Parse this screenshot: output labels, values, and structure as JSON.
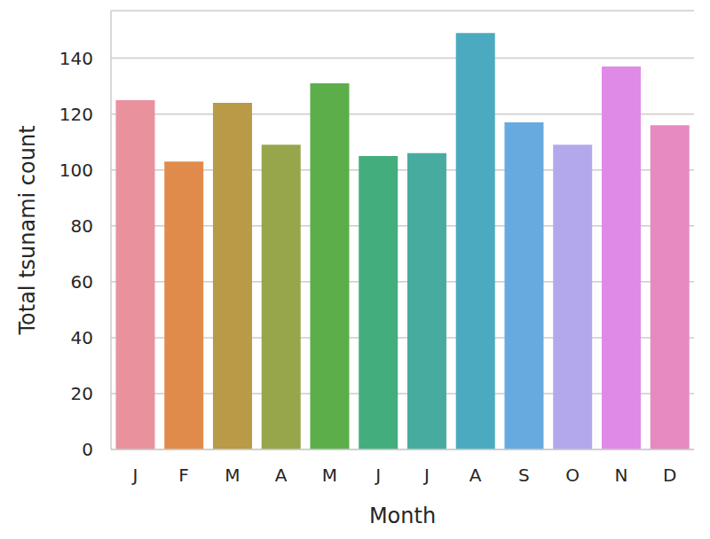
{
  "chart_data": {
    "type": "bar",
    "xlabel": "Month",
    "ylabel": "Total tsunami count",
    "categories": [
      "J",
      "F",
      "M",
      "A",
      "M",
      "J",
      "J",
      "A",
      "S",
      "O",
      "N",
      "D"
    ],
    "values": [
      125,
      103,
      124,
      109,
      131,
      105,
      106,
      149,
      117,
      109,
      137,
      116
    ],
    "colors": [
      "#e9929e",
      "#e08b4b",
      "#b89a47",
      "#97a64a",
      "#5cae4a",
      "#44ad7e",
      "#48aba0",
      "#4baabf",
      "#66aae0",
      "#b3a8ec",
      "#e08ae8",
      "#e68ac1"
    ],
    "ylim": [
      0,
      157
    ],
    "yticks": [
      0,
      20,
      40,
      60,
      80,
      100,
      120,
      140
    ],
    "grid": true
  }
}
